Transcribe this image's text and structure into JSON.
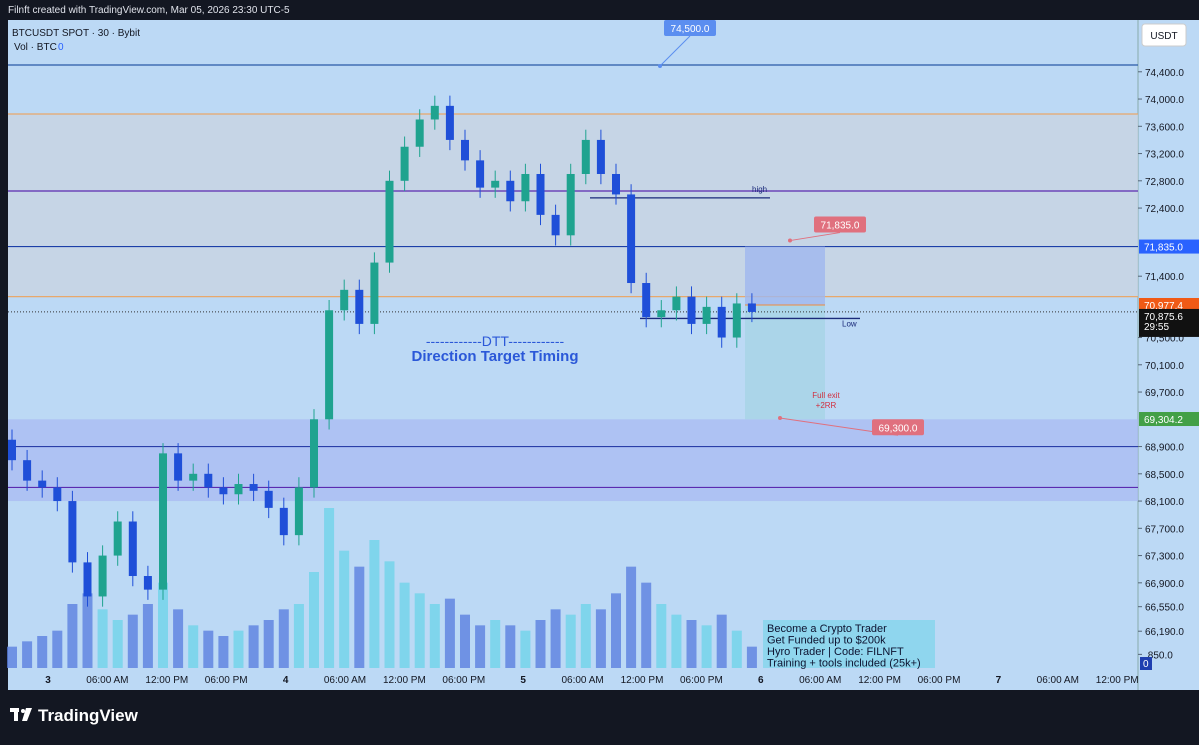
{
  "header": {
    "title": "Filnft created with TradingView.com, Mar 05, 2026 23:30 UTC-5",
    "brand": "TradingView"
  },
  "chart_data": {
    "type": "candlestick",
    "symbol": "BTCUSDT SPOT · 30 · Bybit",
    "volume_label": "Vol · BTC",
    "volume_value": 0,
    "currency": "USDT",
    "up_color": "#1fa38f",
    "down_color": "#1f4fd8",
    "volume_up_color": "#6fd3ea",
    "volume_down_color": "#5b7fe0",
    "ylim": [
      65650,
      75160
    ],
    "yticks": [
      {
        "value": 74400,
        "label": "74,400.0"
      },
      {
        "value": 74000,
        "label": "74,000.0"
      },
      {
        "value": 73600,
        "label": "73,600.0"
      },
      {
        "value": 73200,
        "label": "73,200.0"
      },
      {
        "value": 72800,
        "label": "72,800.0"
      },
      {
        "value": 72400,
        "label": "72,400.0"
      },
      {
        "value": 71400,
        "label": "71,400.0"
      },
      {
        "value": 70500,
        "label": "70,500.0"
      },
      {
        "value": 70100,
        "label": "70,100.0"
      },
      {
        "value": 69700,
        "label": "69,700.0"
      },
      {
        "value": 68900,
        "label": "68,900.0"
      },
      {
        "value": 68500,
        "label": "68,500.0"
      },
      {
        "value": 68100,
        "label": "68,100.0"
      },
      {
        "value": 67700,
        "label": "67,700.0"
      },
      {
        "value": 67300,
        "label": "67,300.0"
      },
      {
        "value": 66900,
        "label": "66,900.0"
      },
      {
        "value": 66550,
        "label": "66,550.0"
      },
      {
        "value": 66190,
        "label": "66,190.0"
      },
      {
        "value": 65850,
        "label": ",850.0"
      }
    ],
    "time_labels": [
      "3",
      "06:00 AM",
      "12:00 PM",
      "06:00 PM",
      "4",
      "06:00 AM",
      "12:00 PM",
      "06:00 PM",
      "5",
      "06:00 AM",
      "12:00 PM",
      "06:00 PM",
      "6",
      "06:00 AM",
      "12:00 PM",
      "06:00 PM",
      "7",
      "06:00 AM",
      "12:00 PM"
    ],
    "open": [
      69000,
      68700,
      68400,
      68300,
      68100,
      67200,
      66700,
      67300,
      67800,
      67000,
      66800,
      68800,
      68400,
      68500,
      68300,
      68200,
      68350,
      68250,
      68000,
      67600,
      68300,
      69300,
      70900,
      71200,
      70700,
      71600,
      72800,
      73300,
      73700,
      73900,
      73400,
      73100,
      72700,
      72800,
      72500,
      72900,
      72300,
      72000,
      72900,
      73400,
      72900,
      72600,
      71300,
      70800,
      70900,
      71100,
      70700,
      70950,
      70500,
      71000
    ],
    "high": [
      69150,
      68850,
      68550,
      68450,
      68250,
      67350,
      67450,
      67950,
      67950,
      67150,
      68950,
      68950,
      68650,
      68650,
      68450,
      68500,
      68500,
      68400,
      68150,
      68450,
      69450,
      71050,
      71350,
      71350,
      71750,
      72950,
      73450,
      73850,
      74050,
      74050,
      73550,
      73250,
      72950,
      72950,
      73050,
      73050,
      72450,
      73050,
      73550,
      73550,
      73050,
      72750,
      71450,
      71050,
      71250,
      71250,
      71100,
      71100,
      71150,
      71150
    ],
    "low": [
      68550,
      68250,
      68150,
      67950,
      67050,
      66550,
      66550,
      67150,
      66850,
      66650,
      66650,
      68250,
      68250,
      68150,
      68050,
      68050,
      68100,
      67850,
      67450,
      67450,
      68150,
      69150,
      70750,
      70550,
      70550,
      71450,
      72650,
      73150,
      73550,
      73250,
      72950,
      72550,
      72550,
      72350,
      72350,
      72150,
      71850,
      71850,
      72750,
      72750,
      72450,
      71150,
      70650,
      70650,
      70750,
      70550,
      70550,
      70350,
      70350,
      70726
    ],
    "close": [
      68700,
      68400,
      68300,
      68100,
      67200,
      66700,
      67300,
      67800,
      67000,
      66800,
      68800,
      68400,
      68500,
      68300,
      68200,
      68350,
      68250,
      68000,
      67600,
      68300,
      69300,
      70900,
      71200,
      70700,
      71600,
      72800,
      73300,
      73700,
      73900,
      73400,
      73100,
      72700,
      72800,
      72500,
      72900,
      72300,
      72000,
      72900,
      73400,
      72900,
      72600,
      71300,
      70800,
      70900,
      71100,
      70700,
      70950,
      70500,
      71000,
      70875.6
    ],
    "volume": [
      20,
      25,
      30,
      35,
      60,
      70,
      55,
      45,
      50,
      60,
      80,
      55,
      40,
      35,
      30,
      35,
      40,
      45,
      55,
      60,
      90,
      150,
      110,
      95,
      120,
      100,
      80,
      70,
      60,
      65,
      50,
      40,
      45,
      40,
      35,
      45,
      55,
      50,
      60,
      55,
      70,
      95,
      80,
      60,
      50,
      45,
      40,
      50,
      35,
      20
    ],
    "zones": [
      {
        "from": 71100,
        "to": 73780,
        "color": "#c9d3e0"
      },
      {
        "from": 68100,
        "to": 69300,
        "color": "#a9b9f2"
      }
    ],
    "levels": [
      {
        "value": 73780,
        "color": "#e8a86b"
      },
      {
        "value": 72650,
        "color": "#5b2bb0"
      },
      {
        "value": 71835,
        "color": "#1c3fa8"
      },
      {
        "value": 71100,
        "color": "#e8a86b"
      },
      {
        "value": 68900,
        "color": "#2a3ea8"
      },
      {
        "value": 68300,
        "color": "#5b2bb0"
      },
      {
        "value": 74500,
        "color": "#2a5aa8"
      }
    ],
    "marked_levels": [
      {
        "value": 72550,
        "label": "high"
      },
      {
        "value": 70780,
        "label": "Low"
      }
    ],
    "callouts": [
      {
        "value": 74500,
        "label": "74,500.0",
        "color": "#5b8ef0"
      },
      {
        "value": 71835,
        "label": "71,835.0",
        "color": "#e0707e"
      },
      {
        "value": 69300,
        "label": "69,300.0",
        "color": "#e0707e"
      }
    ],
    "exit_note": [
      "Full exit",
      "+2RR"
    ],
    "position": {
      "target": 71835,
      "entry": 70977.4,
      "exit": 69300
    },
    "price_badges": [
      {
        "value": 71835,
        "label": "71,835.0",
        "color": "#2962ff"
      },
      {
        "value": 70977.4,
        "label": "70,977.4",
        "color": "#f05a16"
      },
      {
        "value": 70875.6,
        "label": "70,875.6",
        "color": "#111111"
      },
      {
        "value": 69304.2,
        "label": "69,304.2",
        "color": "#43a047"
      }
    ],
    "countdown": "29:55",
    "dtt": [
      "------------DTT------------",
      "Direction Target Timing"
    ],
    "promo": [
      "Become a Crypto Trader",
      "Get Funded up to $200k",
      "Hyro Trader | Code: FILNFT",
      "Training + tools included (25k+)"
    ]
  }
}
